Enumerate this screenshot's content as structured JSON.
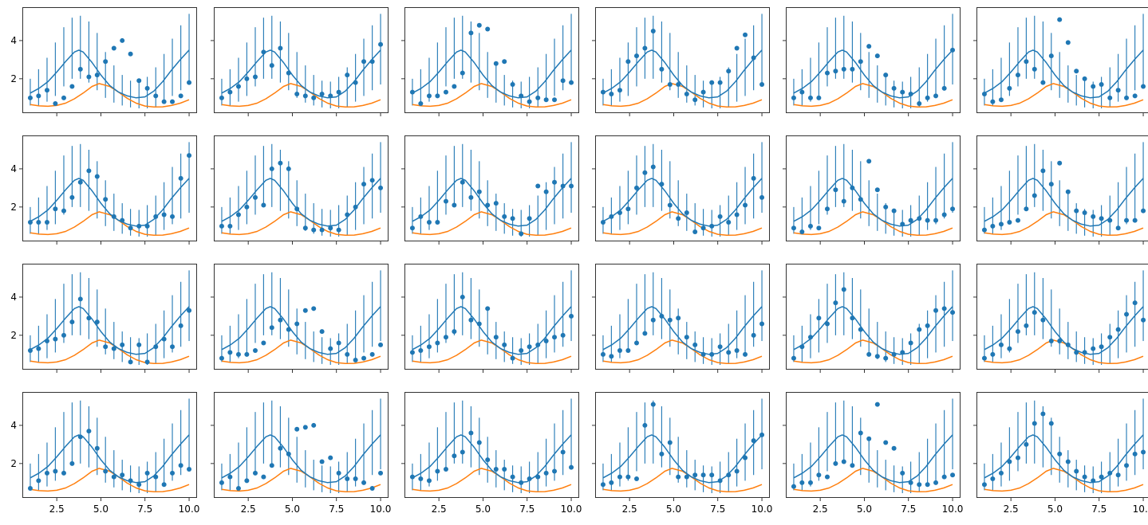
{
  "colors": {
    "data": "#1f77b4",
    "curve2": "#ff7f0e",
    "axes": "#000000",
    "background": "#ffffff"
  },
  "figure": {
    "rows": 4,
    "cols": 6,
    "sharex": true,
    "sharey": true
  },
  "chart_data": {
    "type": "scatter",
    "title": "",
    "xlabel": "",
    "ylabel": "",
    "xlim": [
      0.55,
      10.45
    ],
    "ylim": [
      0.2,
      5.75
    ],
    "xticks": [
      2.5,
      5.0,
      7.5,
      10.0
    ],
    "xtick_labels": [
      "2.5",
      "5.0",
      "7.5",
      "10.0"
    ],
    "yticks": [
      2,
      4
    ],
    "ytick_labels": [
      "2",
      "4"
    ],
    "grid": false,
    "x_points": [
      1.0,
      1.47,
      1.95,
      2.42,
      2.9,
      3.37,
      3.84,
      4.32,
      4.79,
      5.26,
      5.74,
      6.21,
      6.68,
      7.16,
      7.63,
      8.11,
      8.58,
      9.05,
      9.53,
      10.0
    ],
    "shared_curves": {
      "model_mean": {
        "x": [
          1.0,
          1.5,
          2.0,
          2.5,
          3.0,
          3.5,
          3.75,
          4.0,
          4.5,
          5.0,
          5.5,
          6.0,
          6.5,
          7.0,
          7.5,
          8.0,
          8.5,
          9.0,
          9.5,
          10.0
        ],
        "y": [
          1.25,
          1.5,
          1.85,
          2.35,
          2.9,
          3.4,
          3.5,
          3.4,
          2.85,
          2.2,
          1.65,
          1.3,
          1.1,
          1.0,
          1.05,
          1.35,
          1.85,
          2.45,
          3.0,
          3.5
        ]
      },
      "secondary": {
        "x": [
          1.0,
          1.5,
          2.0,
          2.5,
          3.0,
          3.5,
          4.0,
          4.5,
          4.9,
          5.5,
          6.0,
          6.5,
          7.0,
          7.5,
          8.0,
          8.5,
          9.0,
          9.5,
          10.0
        ],
        "y": [
          0.65,
          0.58,
          0.56,
          0.6,
          0.72,
          0.95,
          1.25,
          1.6,
          1.75,
          1.6,
          1.3,
          0.97,
          0.72,
          0.57,
          0.52,
          0.53,
          0.6,
          0.72,
          0.9
        ]
      },
      "errorbar_lower": [
        0.6,
        0.6,
        0.8,
        1.1,
        1.6,
        2.0,
        2.0,
        1.8,
        1.4,
        1.0,
        0.75,
        0.6,
        0.5,
        0.45,
        0.45,
        0.55,
        0.8,
        1.1,
        1.4,
        1.7
      ],
      "errorbar_upper": [
        2.0,
        2.5,
        3.1,
        3.9,
        4.7,
        5.2,
        5.3,
        5.0,
        4.4,
        3.4,
        2.7,
        2.2,
        1.9,
        1.85,
        2.1,
        2.6,
        3.3,
        4.1,
        4.8,
        5.4
      ]
    },
    "panels": [
      {
        "y": [
          1.0,
          1.1,
          1.4,
          0.7,
          1.0,
          1.6,
          2.5,
          2.1,
          2.2,
          2.9,
          3.6,
          4.0,
          3.3,
          1.9,
          1.5,
          1.1,
          0.8,
          0.8,
          1.1,
          1.8
        ]
      },
      {
        "y": [
          1.0,
          1.3,
          1.6,
          2.0,
          2.1,
          3.4,
          2.7,
          3.6,
          2.3,
          1.2,
          1.1,
          1.0,
          1.2,
          1.1,
          1.3,
          2.2,
          1.8,
          2.9,
          2.9,
          3.8
        ]
      },
      {
        "y": [
          1.3,
          0.7,
          1.1,
          1.1,
          1.3,
          1.6,
          2.3,
          4.4,
          4.8,
          4.6,
          2.8,
          2.9,
          1.7,
          1.1,
          0.8,
          1.0,
          0.9,
          0.9,
          1.9,
          1.8
        ]
      },
      {
        "y": [
          1.3,
          1.2,
          1.4,
          2.9,
          3.2,
          3.6,
          4.5,
          2.5,
          1.7,
          1.7,
          1.2,
          0.9,
          1.3,
          1.8,
          1.8,
          2.4,
          3.6,
          4.3,
          3.1,
          1.7
        ]
      },
      {
        "y": [
          1.0,
          1.3,
          1.0,
          1.0,
          2.3,
          2.4,
          2.5,
          2.5,
          2.9,
          3.7,
          3.2,
          2.2,
          1.5,
          1.3,
          1.2,
          0.7,
          1.0,
          1.1,
          1.5,
          3.5
        ]
      },
      {
        "y": [
          1.2,
          0.8,
          0.9,
          1.5,
          2.2,
          2.9,
          2.5,
          1.8,
          3.2,
          5.1,
          3.9,
          2.4,
          2.0,
          1.6,
          1.7,
          1.0,
          1.4,
          1.0,
          1.1,
          1.6
        ]
      },
      {
        "y": [
          1.2,
          1.2,
          1.2,
          1.9,
          1.8,
          2.5,
          3.3,
          3.9,
          3.6,
          2.4,
          1.5,
          1.3,
          0.9,
          1.0,
          1.0,
          1.5,
          1.6,
          1.5,
          3.5,
          4.7
        ]
      },
      {
        "y": [
          1.0,
          1.0,
          1.6,
          2.0,
          2.5,
          2.1,
          4.0,
          4.3,
          4.0,
          1.9,
          0.9,
          0.8,
          0.8,
          0.9,
          0.8,
          1.6,
          2.0,
          3.2,
          3.4,
          3.0
        ]
      },
      {
        "y": [
          0.9,
          1.5,
          1.2,
          1.2,
          2.3,
          2.1,
          3.3,
          2.5,
          2.8,
          2.1,
          2.2,
          1.5,
          1.4,
          0.6,
          1.4,
          3.1,
          2.8,
          3.3,
          3.1,
          3.1
        ]
      },
      {
        "y": [
          1.2,
          1.5,
          1.7,
          1.9,
          3.0,
          3.8,
          4.1,
          3.2,
          2.1,
          1.4,
          1.7,
          0.7,
          0.9,
          1.0,
          1.5,
          1.2,
          1.6,
          2.1,
          3.5,
          2.5
        ]
      },
      {
        "y": [
          0.9,
          0.7,
          1.0,
          0.9,
          1.9,
          2.9,
          2.3,
          3.0,
          2.4,
          4.4,
          2.9,
          2.0,
          1.8,
          1.1,
          1.3,
          1.4,
          1.3,
          1.3,
          1.6,
          1.9
        ]
      },
      {
        "y": [
          0.8,
          1.0,
          1.1,
          1.2,
          1.3,
          1.9,
          2.6,
          3.9,
          3.2,
          4.3,
          2.8,
          1.8,
          1.7,
          1.5,
          1.4,
          1.3,
          0.9,
          1.3,
          1.3,
          1.8
        ]
      },
      {
        "y": [
          1.2,
          1.3,
          1.7,
          1.8,
          2.0,
          2.7,
          3.9,
          2.9,
          2.7,
          1.4,
          1.3,
          1.5,
          0.6,
          1.5,
          0.6,
          1.4,
          1.8,
          1.4,
          2.5,
          3.3
        ]
      },
      {
        "y": [
          0.8,
          1.1,
          1.0,
          1.0,
          1.2,
          1.6,
          2.4,
          2.8,
          2.3,
          2.6,
          3.3,
          3.4,
          2.2,
          1.3,
          1.6,
          1.0,
          0.7,
          0.8,
          1.0,
          1.5
        ]
      },
      {
        "y": [
          1.1,
          1.2,
          1.4,
          1.6,
          1.9,
          2.2,
          4.0,
          2.8,
          2.6,
          3.4,
          1.9,
          1.5,
          0.8,
          1.2,
          1.4,
          1.5,
          1.7,
          1.9,
          2.0,
          3.0
        ]
      },
      {
        "y": [
          1.0,
          0.9,
          1.2,
          1.2,
          1.6,
          2.1,
          2.8,
          3.0,
          2.8,
          2.9,
          1.9,
          1.5,
          1.0,
          1.0,
          1.4,
          1.1,
          1.2,
          1.0,
          2.0,
          2.6
        ]
      },
      {
        "y": [
          0.8,
          1.4,
          1.9,
          2.9,
          2.6,
          3.7,
          4.4,
          2.9,
          2.3,
          1.0,
          0.9,
          0.8,
          1.0,
          1.1,
          1.6,
          2.3,
          2.5,
          3.3,
          3.4,
          3.2
        ]
      },
      {
        "y": [
          0.8,
          1.0,
          1.5,
          1.3,
          2.2,
          2.5,
          3.2,
          2.8,
          1.7,
          1.7,
          1.5,
          1.1,
          1.1,
          1.3,
          1.4,
          1.9,
          2.3,
          3.1,
          3.7,
          2.8
        ]
      },
      {
        "y": [
          0.7,
          1.1,
          1.5,
          1.6,
          1.5,
          2.0,
          3.4,
          3.7,
          2.8,
          1.6,
          1.3,
          1.4,
          1.1,
          0.9,
          1.5,
          1.3,
          0.9,
          1.5,
          1.9,
          1.7
        ]
      },
      {
        "y": [
          1.0,
          1.3,
          0.7,
          1.1,
          1.5,
          1.3,
          1.9,
          2.8,
          2.5,
          3.8,
          3.9,
          4.0,
          2.1,
          2.3,
          1.5,
          1.2,
          1.2,
          1.0,
          0.7,
          1.5
        ]
      },
      {
        "y": [
          1.3,
          1.2,
          1.1,
          1.6,
          1.7,
          2.4,
          2.6,
          3.6,
          3.1,
          2.2,
          1.7,
          1.7,
          1.3,
          1.0,
          1.2,
          1.3,
          1.5,
          1.6,
          2.6,
          1.8
        ]
      },
      {
        "y": [
          0.9,
          1.0,
          1.3,
          1.3,
          1.2,
          4.0,
          5.1,
          2.5,
          3.1,
          1.3,
          1.3,
          1.4,
          1.4,
          1.4,
          1.1,
          1.4,
          1.6,
          2.3,
          3.2,
          3.5
        ]
      },
      {
        "y": [
          0.8,
          1.0,
          1.0,
          1.4,
          1.3,
          2.0,
          2.1,
          1.9,
          3.6,
          3.3,
          5.1,
          3.1,
          2.8,
          1.5,
          1.0,
          0.9,
          0.9,
          1.0,
          1.3,
          1.4
        ]
      },
      {
        "y": [
          0.9,
          1.2,
          1.5,
          2.1,
          2.3,
          3.0,
          4.1,
          4.6,
          4.1,
          2.5,
          2.1,
          1.6,
          1.3,
          1.1,
          1.3,
          1.5,
          1.4,
          1.9,
          2.5,
          2.6
        ]
      }
    ]
  }
}
